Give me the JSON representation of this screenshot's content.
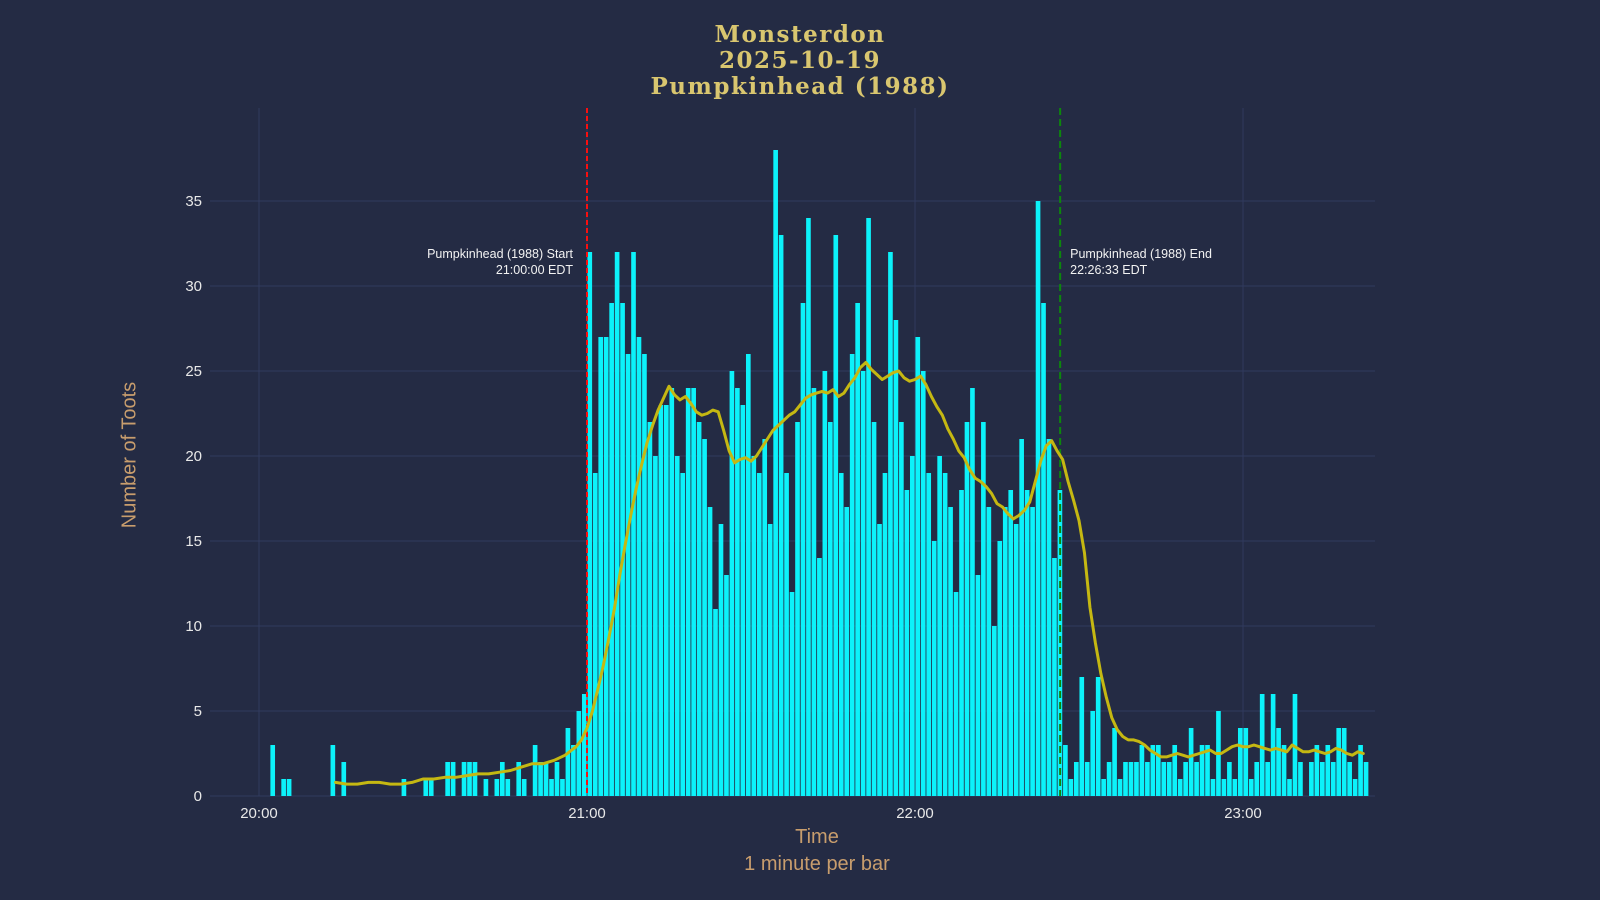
{
  "title": {
    "line1": "Monsterdon",
    "line2": "2025-10-19",
    "line3": "Pumpkinhead (1988)"
  },
  "colors": {
    "background": "#242b44",
    "grid": "#313b5e",
    "bar": "#0cf2fa",
    "rolling_line": "#c5b812",
    "start_line": "#fa0f0f",
    "end_line": "#0c870c",
    "axis_title": "#c89d6d",
    "figure_title": "#d9c66f",
    "tick_label": "#e8e8e8",
    "annotation_text": "#f2f2f2"
  },
  "chart_data": {
    "type": "bar",
    "title": "Monsterdon 2025-10-19 Pumpkinhead (1988)",
    "xlabel": "Time",
    "xlabel2": "1 minute per bar",
    "ylabel": "Number of Toots",
    "grid": true,
    "legend": false,
    "x_ticks": [
      {
        "label": "20:00",
        "minute": 0
      },
      {
        "label": "21:00",
        "minute": 60
      },
      {
        "label": "22:00",
        "minute": 120
      },
      {
        "label": "23:00",
        "minute": 180
      }
    ],
    "y_ticks": [
      0,
      5,
      10,
      15,
      20,
      25,
      30,
      35
    ],
    "ylim": [
      0,
      38
    ],
    "bar_series": {
      "name": "toots per minute",
      "start_time": "20:00",
      "minutes_per_bar": 1,
      "values": [
        0,
        0,
        3,
        0,
        1,
        1,
        0,
        0,
        0,
        0,
        0,
        0,
        0,
        3,
        0,
        2,
        0,
        0,
        0,
        0,
        0,
        0,
        0,
        0,
        0,
        0,
        1,
        0,
        0,
        0,
        1,
        1,
        0,
        0,
        2,
        2,
        0,
        2,
        2,
        2,
        0,
        1,
        0,
        1,
        2,
        1,
        0,
        2,
        1,
        0,
        3,
        2,
        2,
        1,
        2,
        1,
        4,
        3,
        5,
        6,
        32,
        19,
        27,
        27,
        29,
        32,
        29,
        26,
        32,
        27,
        26,
        22,
        20,
        23,
        23,
        24,
        20,
        19,
        24,
        24,
        22,
        21,
        17,
        11,
        16,
        13,
        25,
        24,
        23,
        26,
        20,
        19,
        21,
        16,
        38,
        33,
        19,
        12,
        22,
        29,
        34,
        24,
        14,
        25,
        22,
        33,
        19,
        17,
        26,
        29,
        25,
        34,
        22,
        16,
        19,
        32,
        28,
        22,
        18,
        20,
        27,
        25,
        19,
        15,
        20,
        19,
        17,
        12,
        18,
        22,
        24,
        13,
        22,
        17,
        10,
        15,
        17,
        18,
        16,
        21,
        18,
        17,
        35,
        29,
        21,
        14,
        18,
        3,
        1,
        2,
        7,
        2,
        5,
        7,
        1,
        2,
        4,
        1,
        2,
        2,
        2,
        3,
        2,
        3,
        3,
        2,
        2,
        3,
        1,
        2,
        4,
        2,
        3,
        3,
        1,
        5,
        1,
        2,
        1,
        4,
        4,
        1,
        2,
        6,
        2,
        6,
        4,
        3,
        1,
        6,
        2,
        0,
        2,
        3,
        2,
        3,
        2,
        4,
        4,
        2,
        1,
        3,
        2
      ]
    },
    "line_series": {
      "name": "rolling average",
      "points": [
        [
          14,
          0.8
        ],
        [
          16,
          0.7
        ],
        [
          18,
          0.7
        ],
        [
          20,
          0.8
        ],
        [
          22,
          0.8
        ],
        [
          24,
          0.7
        ],
        [
          26,
          0.7
        ],
        [
          28,
          0.8
        ],
        [
          30,
          1.0
        ],
        [
          32,
          1.0
        ],
        [
          34,
          1.1
        ],
        [
          36,
          1.1
        ],
        [
          38,
          1.2
        ],
        [
          40,
          1.3
        ],
        [
          42,
          1.3
        ],
        [
          44,
          1.4
        ],
        [
          46,
          1.5
        ],
        [
          48,
          1.7
        ],
        [
          50,
          1.9
        ],
        [
          52,
          1.9
        ],
        [
          54,
          2.1
        ],
        [
          56,
          2.4
        ],
        [
          58,
          2.9
        ],
        [
          59,
          3.3
        ],
        [
          60,
          4.0
        ],
        [
          61,
          5.0
        ],
        [
          62,
          6.3
        ],
        [
          63,
          7.7
        ],
        [
          64,
          9.3
        ],
        [
          65,
          11.0
        ],
        [
          66,
          13.0
        ],
        [
          67,
          14.8
        ],
        [
          68,
          16.5
        ],
        [
          69,
          18.1
        ],
        [
          70,
          19.5
        ],
        [
          71,
          20.8
        ],
        [
          72,
          21.8
        ],
        [
          73,
          22.7
        ],
        [
          74,
          23.4
        ],
        [
          75,
          24.1
        ],
        [
          76,
          23.6
        ],
        [
          77,
          23.3
        ],
        [
          78,
          23.5
        ],
        [
          79,
          23.1
        ],
        [
          80,
          22.6
        ],
        [
          81,
          22.4
        ],
        [
          82,
          22.5
        ],
        [
          83,
          22.7
        ],
        [
          84,
          22.6
        ],
        [
          85,
          21.5
        ],
        [
          86,
          20.3
        ],
        [
          87,
          19.6
        ],
        [
          88,
          19.8
        ],
        [
          89,
          19.9
        ],
        [
          90,
          19.7
        ],
        [
          91,
          20.0
        ],
        [
          92,
          20.5
        ],
        [
          93,
          21.0
        ],
        [
          94,
          21.5
        ],
        [
          95,
          21.8
        ],
        [
          96,
          22.1
        ],
        [
          97,
          22.4
        ],
        [
          98,
          22.6
        ],
        [
          99,
          23.0
        ],
        [
          100,
          23.4
        ],
        [
          101,
          23.6
        ],
        [
          102,
          23.7
        ],
        [
          103,
          23.8
        ],
        [
          104,
          23.7
        ],
        [
          105,
          23.9
        ],
        [
          106,
          23.5
        ],
        [
          107,
          23.7
        ],
        [
          108,
          24.2
        ],
        [
          109,
          24.6
        ],
        [
          110,
          25.2
        ],
        [
          111,
          25.5
        ],
        [
          112,
          25.1
        ],
        [
          113,
          24.8
        ],
        [
          114,
          24.5
        ],
        [
          115,
          24.7
        ],
        [
          116,
          24.9
        ],
        [
          117,
          25.0
        ],
        [
          118,
          24.6
        ],
        [
          119,
          24.4
        ],
        [
          120,
          24.5
        ],
        [
          121,
          24.7
        ],
        [
          122,
          24.2
        ],
        [
          123,
          23.5
        ],
        [
          124,
          22.9
        ],
        [
          125,
          22.4
        ],
        [
          126,
          21.6
        ],
        [
          127,
          21.0
        ],
        [
          128,
          20.3
        ],
        [
          129,
          19.9
        ],
        [
          130,
          19.2
        ],
        [
          131,
          18.7
        ],
        [
          132,
          18.5
        ],
        [
          133,
          18.2
        ],
        [
          134,
          17.8
        ],
        [
          135,
          17.2
        ],
        [
          136,
          17.0
        ],
        [
          137,
          16.6
        ],
        [
          138,
          16.3
        ],
        [
          139,
          16.5
        ],
        [
          140,
          16.8
        ],
        [
          141,
          17.3
        ],
        [
          142,
          18.5
        ],
        [
          143,
          19.7
        ],
        [
          144,
          20.6
        ],
        [
          145,
          20.9
        ],
        [
          146,
          20.3
        ],
        [
          147,
          19.8
        ],
        [
          148,
          18.5
        ],
        [
          149,
          17.4
        ],
        [
          150,
          16.2
        ],
        [
          151,
          14.3
        ],
        [
          152,
          11.1
        ],
        [
          153,
          9.0
        ],
        [
          154,
          7.2
        ],
        [
          155,
          5.8
        ],
        [
          156,
          4.6
        ],
        [
          157,
          3.9
        ],
        [
          158,
          3.5
        ],
        [
          159,
          3.3
        ],
        [
          160,
          3.3
        ],
        [
          161,
          3.2
        ],
        [
          162,
          3.0
        ],
        [
          163,
          2.7
        ],
        [
          164,
          2.5
        ],
        [
          165,
          2.3
        ],
        [
          166,
          2.3
        ],
        [
          167,
          2.4
        ],
        [
          168,
          2.5
        ],
        [
          169,
          2.4
        ],
        [
          170,
          2.3
        ],
        [
          171,
          2.4
        ],
        [
          172,
          2.5
        ],
        [
          173,
          2.6
        ],
        [
          174,
          2.7
        ],
        [
          175,
          2.5
        ],
        [
          176,
          2.5
        ],
        [
          177,
          2.7
        ],
        [
          178,
          2.9
        ],
        [
          179,
          3.0
        ],
        [
          180,
          2.9
        ],
        [
          181,
          2.9
        ],
        [
          182,
          3.0
        ],
        [
          183,
          2.9
        ],
        [
          184,
          2.8
        ],
        [
          185,
          2.7
        ],
        [
          186,
          2.8
        ],
        [
          187,
          2.7
        ],
        [
          188,
          2.6
        ],
        [
          189,
          3.0
        ],
        [
          190,
          2.8
        ],
        [
          191,
          2.6
        ],
        [
          192,
          2.6
        ],
        [
          193,
          2.7
        ],
        [
          194,
          2.6
        ],
        [
          195,
          2.5
        ],
        [
          196,
          2.6
        ],
        [
          197,
          2.8
        ],
        [
          198,
          2.7
        ],
        [
          199,
          2.5
        ],
        [
          200,
          2.4
        ],
        [
          201,
          2.6
        ],
        [
          202,
          2.5
        ]
      ]
    },
    "annotations": [
      {
        "id": "start",
        "line1": "Pumpkinhead (1988) Start",
        "line2": "21:00:00 EDT",
        "minute": 60,
        "align": "right"
      },
      {
        "id": "end",
        "line1": "Pumpkinhead (1988) End",
        "line2": "22:26:33 EDT",
        "minute": 146.55,
        "align": "left"
      }
    ]
  },
  "layout_note": ""
}
